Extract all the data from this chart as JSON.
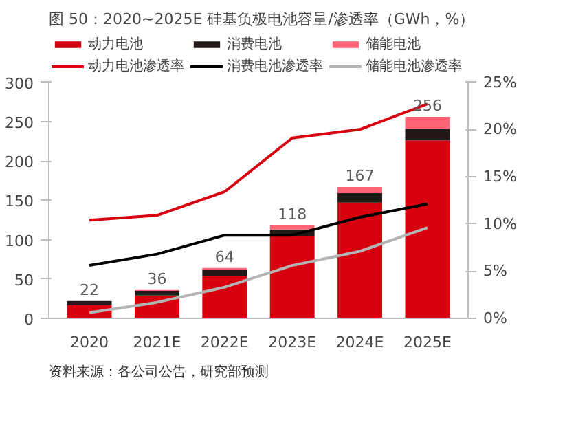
{
  "chart_data": {
    "type": "bar",
    "title": "图 50：2020~2025E 硅基负极电池容量/渗透率（GWh，%）",
    "categories": [
      "2020",
      "2021E",
      "2022E",
      "2023E",
      "2024E",
      "2025E"
    ],
    "stacked": true,
    "series": [
      {
        "name": "动力电池",
        "color": "#d7000f",
        "values": [
          17,
          29,
          54,
          104,
          147,
          226
        ]
      },
      {
        "name": "消费电池",
        "color": "#231815",
        "values": [
          5,
          6,
          8,
          9,
          12,
          15
        ]
      },
      {
        "name": "储能电池",
        "color": "#ff6477",
        "values": [
          0,
          1,
          2,
          5,
          8,
          15
        ]
      },
      {
        "name": "动力电池渗透率",
        "type": "line",
        "axis": "y2",
        "color": "#d7000f",
        "values": [
          10.4,
          10.9,
          13.4,
          19.1,
          20.0,
          22.7
        ]
      },
      {
        "name": "消费电池渗透率",
        "type": "line",
        "axis": "y2",
        "color": "#000000",
        "values": [
          5.6,
          6.8,
          8.8,
          8.8,
          10.7,
          12.1
        ]
      },
      {
        "name": "储能电池渗透率",
        "type": "line",
        "axis": "y2",
        "color": "#b4b4b4",
        "values": [
          0.6,
          1.7,
          3.3,
          5.6,
          7.1,
          9.6
        ]
      }
    ],
    "totals": [
      "22",
      "36",
      "64",
      "118",
      "167",
      "256"
    ],
    "ylim": [
      0,
      300
    ],
    "yticks": [
      0,
      50,
      100,
      150,
      200,
      250,
      300
    ],
    "y2lim": [
      0,
      25
    ],
    "y2ticks": [
      {
        "value": 0,
        "label": "0%"
      },
      {
        "value": 5,
        "label": "5%"
      },
      {
        "value": 10,
        "label": "10%"
      },
      {
        "value": 15,
        "label": "15%"
      },
      {
        "value": 20,
        "label": "20%"
      },
      {
        "value": 25,
        "label": "25%"
      }
    ],
    "grid": false,
    "legend": "top",
    "marker": "none",
    "line_style": "solid",
    "annotations": [
      "资料来源：各公司公告，研究部预测"
    ]
  }
}
